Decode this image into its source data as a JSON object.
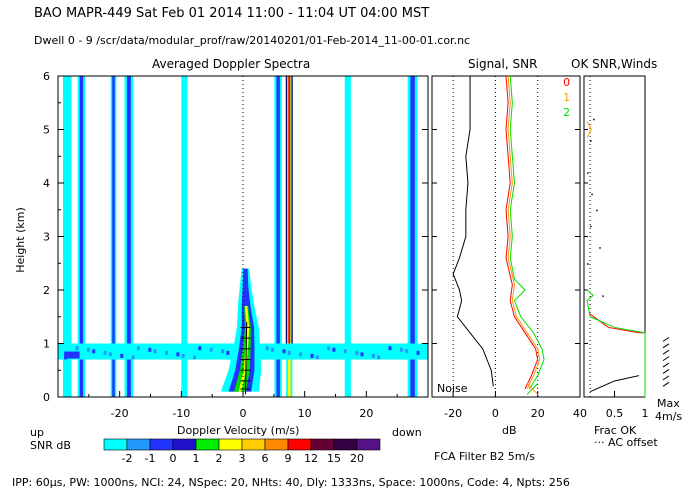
{
  "header": {
    "line1": "BAO  MAPR-449  Sat Feb 01 2014 11:00 - 11:04 UT 04:00 MST",
    "line2": "Dwell  0 - 9  /scr/data/modular_prof/raw/20140201/01-Feb-2014_11-00-01.cor.nc"
  },
  "footer": {
    "params": "IPP: 60µs,  PW: 1000ns,  NCI: 24,  NSpec: 20,  NHts: 40,  Dly: 1333ns,  Space: 1000ns,  Code: 4,  Npts: 256",
    "filter": "FCA Filter B2  5m/s"
  },
  "colors": {
    "cyan": "#00ffff",
    "blue": "#2233ff",
    "dark_navy": "#000066",
    "yellow": "#ffff00",
    "red": "#ff0000",
    "green": "#00dd00",
    "orange": "#ff9900"
  },
  "chart_data": [
    {
      "type": "heatmap",
      "title": "Averaged Doppler Spectra",
      "xlabel": "Doppler Velocity (m/s)",
      "ylabel": "Height (km)",
      "xlim": [
        -30,
        30
      ],
      "ylim": [
        0,
        6
      ],
      "x_ticks": [
        -20,
        -10,
        0,
        10,
        20
      ],
      "x_tick_labels": [
        "-20",
        "-10",
        "0",
        "10",
        "20"
      ],
      "y_ticks": [
        0,
        1,
        2,
        3,
        4,
        5,
        6
      ],
      "y_tick_labels": [
        "0",
        "1",
        "2",
        "3",
        "4",
        "5",
        "6"
      ],
      "left_label": "up",
      "right_label": "down",
      "colorbar_label": "SNR dB",
      "colorbar_levels": [
        "-2",
        "-1",
        "0",
        "1",
        "2",
        "3",
        "6",
        "9",
        "12",
        "15",
        "20"
      ],
      "colorbar_colors": [
        "#00ffff",
        "#2299ff",
        "#2233ff",
        "#2211cc",
        "#00ee00",
        "#ffff00",
        "#ffcc00",
        "#ff8800",
        "#ff0000",
        "#660033",
        "#330044",
        "#551188"
      ],
      "vertical_bands": [
        {
          "v_center": -28.5,
          "v_width": 1.4,
          "h_top": 6,
          "color": "#00ffff"
        },
        {
          "v_center": -26.2,
          "v_width": 1.2,
          "h_top": 6,
          "color": "#2233ff"
        },
        {
          "v_center": -21.0,
          "v_width": 0.9,
          "h_top": 6,
          "color": "#2233ff"
        },
        {
          "v_center": -18.5,
          "v_width": 1.4,
          "h_top": 6,
          "color": "#2233ff"
        },
        {
          "v_center": -9.5,
          "v_width": 1.0,
          "h_top": 6,
          "color": "#00ffff"
        },
        {
          "v_center": 5.7,
          "v_width": 1.2,
          "h_top": 6,
          "color": "#2233ff"
        },
        {
          "v_center": 7.5,
          "v_width": 1.0,
          "h_top": 6,
          "color": "#ffff00"
        },
        {
          "v_center": 17.0,
          "v_width": 1.0,
          "h_top": 6,
          "color": "#00ffff"
        },
        {
          "v_center": 27.5,
          "v_width": 1.6,
          "h_top": 6,
          "color": "#2233ff"
        }
      ],
      "noise_band_km": [
        0.7,
        1.0
      ],
      "echo_core": [
        {
          "h": 0.1,
          "v": -0.5
        },
        {
          "h": 0.5,
          "v": 0.3
        },
        {
          "h": 0.9,
          "v": 0.6
        },
        {
          "h": 1.3,
          "v": 0.8
        },
        {
          "h": 1.7,
          "v": 0.5
        },
        {
          "h": 2.1,
          "v": 0.4
        },
        {
          "h": 2.4,
          "v": 0.4
        }
      ]
    },
    {
      "type": "line",
      "title": "Signal, SNR",
      "xlabel": "dB",
      "xlim": [
        -30,
        40
      ],
      "ylim": [
        0,
        6
      ],
      "x_ticks": [
        -20,
        0,
        20,
        40
      ],
      "x_tick_labels": [
        "-20",
        "0",
        "20",
        "40"
      ],
      "annotation": "Noise",
      "legend": [
        "0",
        "1",
        "2"
      ],
      "series": [
        {
          "name": "noise",
          "color": "#000000",
          "points": [
            [
              -1,
              0.2
            ],
            [
              -2,
              0.5
            ],
            [
              -6,
              0.9
            ],
            [
              -12,
              1.2
            ],
            [
              -18,
              1.5
            ],
            [
              -16,
              1.8
            ],
            [
              -17,
              2.0
            ],
            [
              -20,
              2.3
            ],
            [
              -17,
              2.6
            ],
            [
              -14,
              3.0
            ],
            [
              -14,
              3.5
            ],
            [
              -13,
              4.0
            ],
            [
              -14,
              4.5
            ],
            [
              -12,
              5.0
            ],
            [
              -12,
              5.5
            ],
            [
              -12,
              6.0
            ]
          ]
        },
        {
          "name": "0",
          "color": "#ff0000",
          "points": [
            [
              14,
              0.15
            ],
            [
              17,
              0.4
            ],
            [
              20,
              0.7
            ],
            [
              19,
              0.9
            ],
            [
              14,
              1.2
            ],
            [
              9,
              1.5
            ],
            [
              7,
              1.8
            ],
            [
              8,
              2.1
            ],
            [
              5,
              2.6
            ],
            [
              6,
              3.0
            ],
            [
              5,
              3.5
            ],
            [
              7,
              4.0
            ],
            [
              6,
              4.5
            ],
            [
              5,
              5.0
            ],
            [
              6,
              5.5
            ],
            [
              5,
              6.0
            ]
          ]
        },
        {
          "name": "1",
          "color": "#ff9900",
          "points": [
            [
              15,
              0.15
            ],
            [
              18,
              0.4
            ],
            [
              21,
              0.7
            ],
            [
              20,
              0.9
            ],
            [
              15,
              1.2
            ],
            [
              10,
              1.5
            ],
            [
              8,
              1.8
            ],
            [
              9,
              2.1
            ],
            [
              6,
              2.6
            ],
            [
              7,
              3.0
            ],
            [
              6,
              3.5
            ],
            [
              8,
              4.0
            ],
            [
              7,
              4.5
            ],
            [
              6,
              5.0
            ],
            [
              7,
              5.5
            ],
            [
              6,
              6.0
            ]
          ]
        },
        {
          "name": "2",
          "color": "#00dd00",
          "points": [
            [
              16,
              0.15
            ],
            [
              20,
              0.4
            ],
            [
              23,
              0.7
            ],
            [
              22,
              0.9
            ],
            [
              18,
              1.2
            ],
            [
              12,
              1.5
            ],
            [
              9,
              1.8
            ],
            [
              14,
              2.0
            ],
            [
              9,
              2.2
            ],
            [
              7,
              2.6
            ],
            [
              8,
              3.0
            ],
            [
              7,
              3.5
            ],
            [
              9,
              4.0
            ],
            [
              8,
              4.5
            ],
            [
              7,
              5.0
            ],
            [
              8,
              5.5
            ],
            [
              7,
              6.0
            ]
          ]
        }
      ]
    },
    {
      "type": "line",
      "title": "OK SNR,Winds",
      "xlabel": "Frac OK",
      "xlim": [
        0,
        1
      ],
      "ylim": [
        0,
        6
      ],
      "x_ticks": [
        0.5,
        1
      ],
      "x_tick_labels": [
        "0.5",
        "1"
      ],
      "note": "AC offset",
      "max_label": "Max",
      "max_value": "4m/s",
      "series": [
        {
          "name": "red",
          "color": "#ff0000",
          "points": [
            [
              0.1,
              1.55
            ],
            [
              0.4,
              1.3
            ],
            [
              0.9,
              1.2
            ],
            [
              1.0,
              1.2
            ]
          ]
        },
        {
          "name": "green",
          "color": "#00dd00",
          "points": [
            [
              0.05,
              2.0
            ],
            [
              0.15,
              1.9
            ],
            [
              0.05,
              1.8
            ],
            [
              0.1,
              1.5
            ],
            [
              0.5,
              1.3
            ],
            [
              1.0,
              1.2
            ],
            [
              1.0,
              0.0
            ]
          ]
        },
        {
          "name": "black",
          "color": "#000000",
          "points": [
            [
              0.1,
              0.1
            ],
            [
              0.5,
              0.3
            ],
            [
              0.9,
              0.4
            ]
          ]
        }
      ],
      "wind_dots": [
        [
          0.05,
          4.2
        ],
        [
          0.12,
          3.8
        ],
        [
          0.2,
          3.5
        ],
        [
          0.1,
          3.2
        ],
        [
          0.25,
          2.8
        ],
        [
          0.05,
          2.5
        ],
        [
          0.3,
          1.9
        ],
        [
          0.1,
          4.8
        ],
        [
          0.15,
          5.2
        ]
      ]
    }
  ]
}
